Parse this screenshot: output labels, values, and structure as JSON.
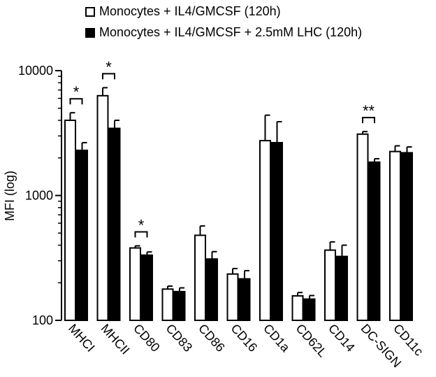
{
  "chart_data": {
    "type": "bar",
    "ylabel": "MFI (log)",
    "yscale": "log",
    "ylim": [
      100,
      10000
    ],
    "yticks": [
      100,
      1000,
      10000
    ],
    "ytick_labels": [
      "100",
      "1000",
      "10000"
    ],
    "legend_position": "top",
    "categories": [
      "MHCI",
      "MHCII",
      "CD80",
      "CD83",
      "CD86",
      "CD16",
      "CD1a",
      "CD62L",
      "CD14",
      "DC-SIGN",
      "CD11c"
    ],
    "series": [
      {
        "name": "Monocytes + IL4/GMCSF (120h)",
        "fill": "#ffffff",
        "values": [
          4000,
          6300,
          380,
          178,
          480,
          235,
          2750,
          157,
          365,
          3100,
          2250
        ],
        "errors": [
          600,
          1000,
          15,
          10,
          90,
          25,
          1650,
          10,
          60,
          150,
          250
        ]
      },
      {
        "name": "Monocytes + IL4/GMCSF + 2.5mM LHC (120h)",
        "fill": "#000000",
        "values": [
          2300,
          3450,
          333,
          170,
          310,
          215,
          2650,
          148,
          325,
          1850,
          2200
        ],
        "errors": [
          350,
          550,
          20,
          12,
          45,
          35,
          1250,
          10,
          75,
          120,
          250
        ]
      }
    ],
    "significance": [
      {
        "category": "MHCI",
        "label": "*"
      },
      {
        "category": "MHCII",
        "label": "*"
      },
      {
        "category": "CD80",
        "label": "*"
      },
      {
        "category": "DC-SIGN",
        "label": "**"
      }
    ]
  }
}
